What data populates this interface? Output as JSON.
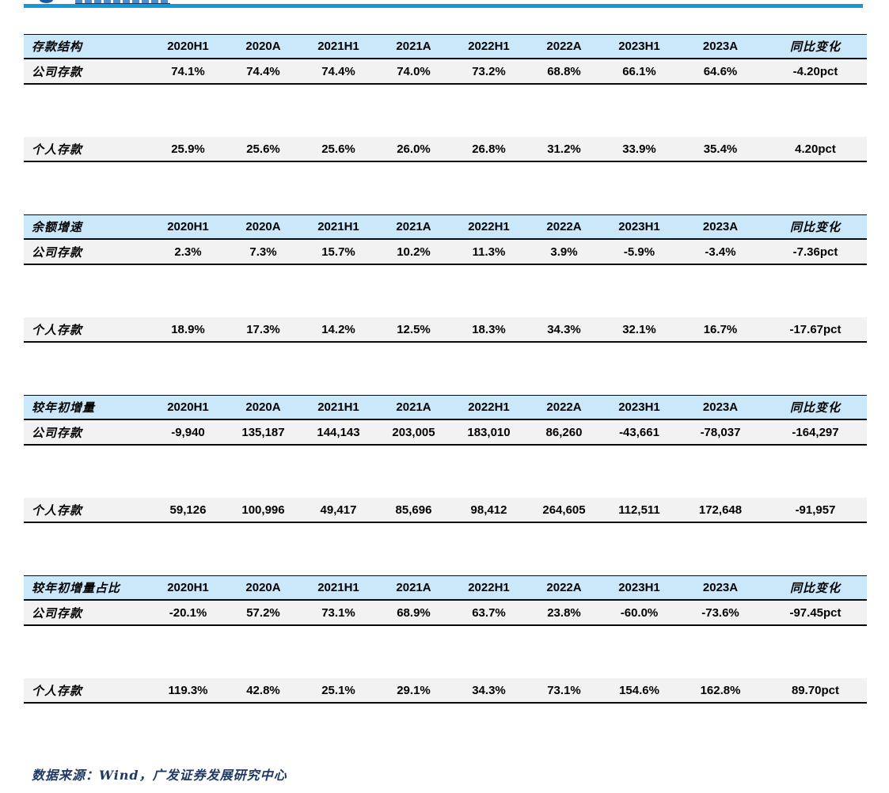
{
  "page": {
    "background": "#ffffff",
    "accent_bar_color": "#1598d9",
    "table_header_bg": "#cbe8fb",
    "table_row_bg": "#f2f2f2",
    "footer_text_color": "#1f3864"
  },
  "columns": [
    "2020H1",
    "2020A",
    "2021H1",
    "2021A",
    "2022H1",
    "2022A",
    "2023H1",
    "2023A",
    "同比变化"
  ],
  "tables": [
    {
      "title": "存款结构",
      "rows": [
        {
          "label": "公司存款",
          "values": [
            "74.1%",
            "74.4%",
            "74.4%",
            "74.0%",
            "73.2%",
            "68.8%",
            "66.1%",
            "64.6%",
            "-4.20pct"
          ]
        },
        {
          "label": "个人存款",
          "values": [
            "25.9%",
            "25.6%",
            "25.6%",
            "26.0%",
            "26.8%",
            "31.2%",
            "33.9%",
            "35.4%",
            "4.20pct"
          ]
        }
      ]
    },
    {
      "title": "余额增速",
      "rows": [
        {
          "label": "公司存款",
          "values": [
            "2.3%",
            "7.3%",
            "15.7%",
            "10.2%",
            "11.3%",
            "3.9%",
            "-5.9%",
            "-3.4%",
            "-7.36pct"
          ]
        },
        {
          "label": "个人存款",
          "values": [
            "18.9%",
            "17.3%",
            "14.2%",
            "12.5%",
            "18.3%",
            "34.3%",
            "32.1%",
            "16.7%",
            "-17.67pct"
          ]
        }
      ]
    },
    {
      "title": "较年初增量",
      "rows": [
        {
          "label": "公司存款",
          "values": [
            "-9,940",
            "135,187",
            "144,143",
            "203,005",
            "183,010",
            "86,260",
            "-43,661",
            "-78,037",
            "-164,297"
          ]
        },
        {
          "label": "个人存款",
          "values": [
            "59,126",
            "100,996",
            "49,417",
            "85,696",
            "98,412",
            "264,605",
            "112,511",
            "172,648",
            "-91,957"
          ]
        }
      ]
    },
    {
      "title": "较年初增量占比",
      "rows": [
        {
          "label": "公司存款",
          "values": [
            "-20.1%",
            "57.2%",
            "73.1%",
            "68.9%",
            "63.7%",
            "23.8%",
            "-60.0%",
            "-73.6%",
            "-97.45pct"
          ]
        },
        {
          "label": "个人存款",
          "values": [
            "119.3%",
            "42.8%",
            "25.1%",
            "29.1%",
            "34.3%",
            "73.1%",
            "154.6%",
            "162.8%",
            "89.70pct"
          ]
        }
      ]
    }
  ],
  "footer": {
    "source_label": "数据来源：Wind，广发证券发展研究中心"
  }
}
